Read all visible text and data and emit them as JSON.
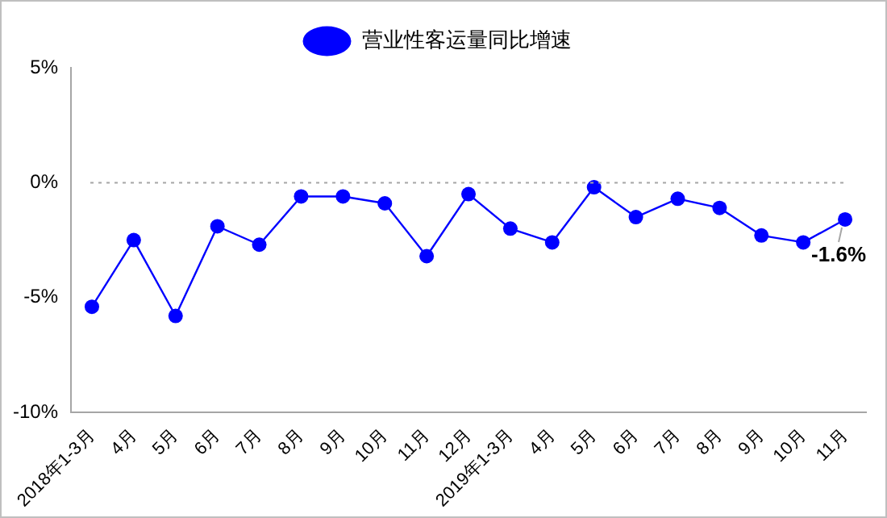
{
  "chart_data": {
    "type": "line",
    "categories": [
      "2018年1-3月",
      "4月",
      "5月",
      "6月",
      "7月",
      "8月",
      "9月",
      "10月",
      "11月",
      "12月",
      "2019年1-3月",
      "4月",
      "5月",
      "6月",
      "7月",
      "8月",
      "9月",
      "10月",
      "11月"
    ],
    "series": [
      {
        "name": "营业性客运量同比增速",
        "color": "#0000ff",
        "values": [
          -5.4,
          -2.5,
          -5.8,
          -1.9,
          -2.7,
          -0.6,
          -0.6,
          -0.9,
          -3.2,
          -0.5,
          -2.0,
          -2.6,
          -0.2,
          -1.5,
          -0.7,
          -1.1,
          -2.3,
          -2.6,
          -1.6
        ],
        "value_labels": [
          null,
          null,
          null,
          null,
          null,
          null,
          null,
          null,
          null,
          null,
          null,
          null,
          null,
          null,
          null,
          null,
          null,
          null,
          "-1.6%"
        ]
      }
    ],
    "ylim": [
      -10,
      5
    ],
    "yticks": [
      {
        "value": -10,
        "label": "-10%"
      },
      {
        "value": -5,
        "label": "-5%"
      },
      {
        "value": 0,
        "label": "0%"
      },
      {
        "value": 5,
        "label": "5%"
      }
    ],
    "ref_lines": [
      {
        "axis": "y",
        "value": 0,
        "color": "#a6a6a6",
        "line_style": "dotted"
      }
    ],
    "grid": false,
    "legend": "top",
    "marker": "circle",
    "line_style": "solid"
  }
}
